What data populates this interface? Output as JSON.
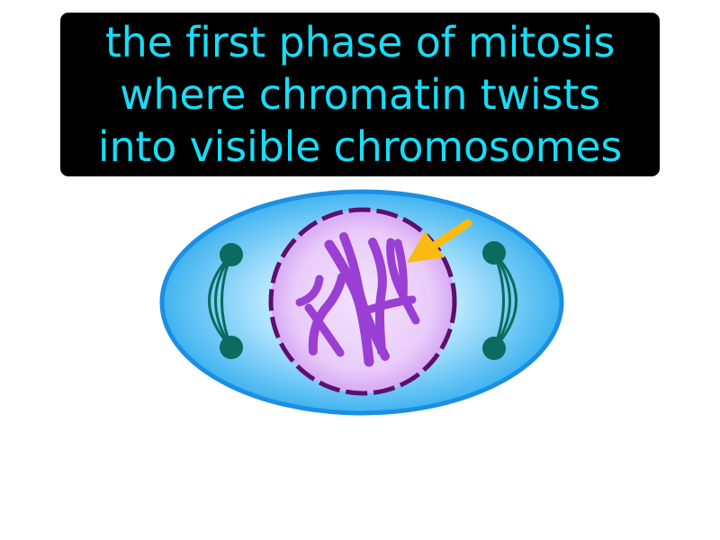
{
  "definition": {
    "lines": [
      "the first phase of mitosis",
      "where chromatin twists",
      "into visible chromosomes"
    ]
  },
  "colors": {
    "caption_background": "#000000",
    "caption_text": "#19dcf5",
    "cell_border": "#1a8fe3",
    "cell_fill": "#5fc8f7",
    "nucleus_border": "#5c0f6e",
    "nucleus_fill": "#eed4fb",
    "chromosome": "#9a3fd4",
    "centrosome": "#0b6b5e",
    "arrow": "#fbb913"
  },
  "icons": [
    "cell-diagram",
    "chromosome-shape",
    "pointer-arrow"
  ]
}
